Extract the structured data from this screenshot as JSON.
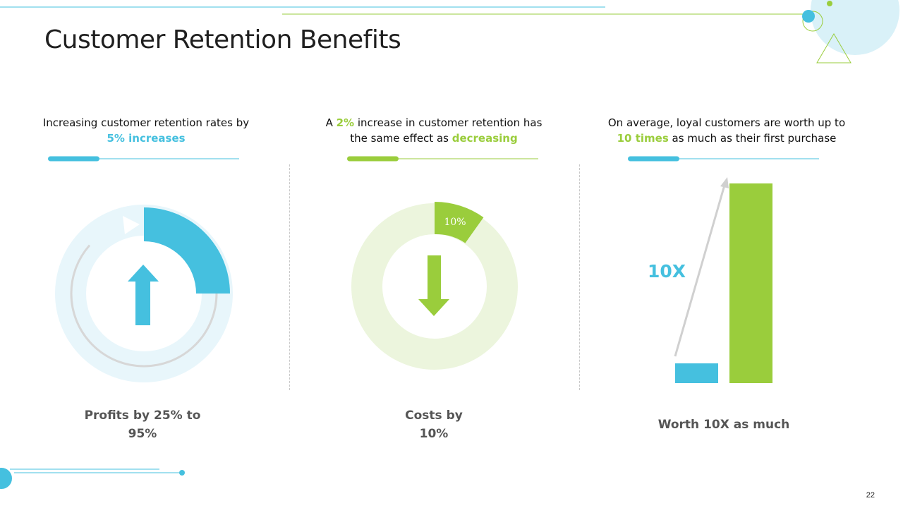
{
  "slide": {
    "title": "Customer Retention Benefits",
    "page_number": "22"
  },
  "columns": [
    {
      "lead_pre": "Increasing customer retention rates by ",
      "lead_highlight": "5% increases",
      "lead_post": "",
      "caption_line1": "Profits by 25% to",
      "caption_line2": "95%"
    },
    {
      "lead_pre": "A ",
      "lead_highlight": "2%",
      "lead_mid": " increase in customer retention has the same effect as ",
      "lead_highlight2": "decreasing",
      "donut_label": "10%",
      "donut_value": 0.1,
      "caption_line1": "Costs by",
      "caption_line2": "10%"
    },
    {
      "lead_pre": "On average, loyal customers are worth up to ",
      "lead_highlight": "10 times",
      "lead_post": " as much as their first purchase",
      "multiplier_label": "10X",
      "caption": "Worth 10X as much"
    }
  ],
  "colors": {
    "blue": "#45c0df",
    "green": "#9acd3c",
    "light_blue": "#e8f6fb",
    "light_green": "#ecf5dd"
  }
}
